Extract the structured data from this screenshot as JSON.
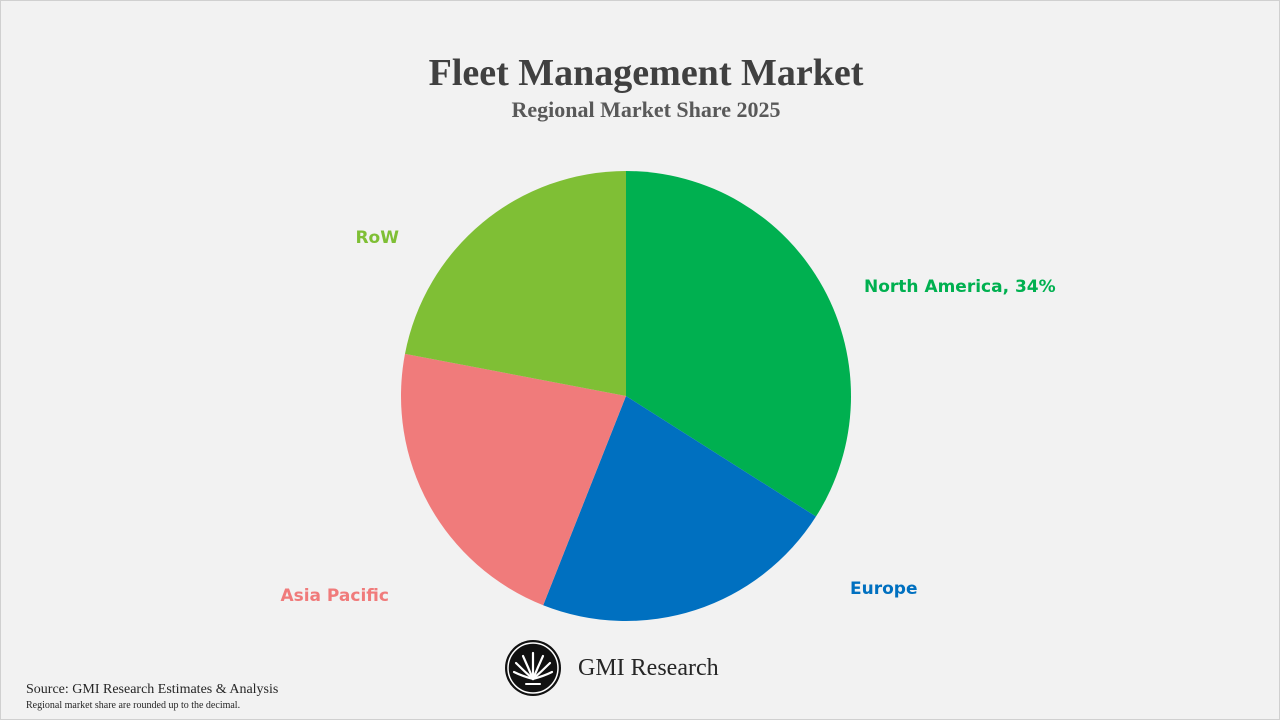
{
  "header": {
    "title": "Fleet Management Market",
    "subtitle": "Regional Market Share 2025"
  },
  "chart_data": {
    "type": "pie",
    "title": "Fleet Management Market",
    "subtitle": "Regional Market Share 2025",
    "start_angle_deg": 0,
    "direction": "clockwise",
    "slices": [
      {
        "name": "North America",
        "value": 34,
        "color": "#00b050",
        "label": "North America, 34%"
      },
      {
        "name": "Europe",
        "value": 22,
        "color": "#0070c0",
        "label": "Europe"
      },
      {
        "name": "Asia Pacific",
        "value": 22,
        "color": "#f07b7b",
        "label": "Asia Pacific"
      },
      {
        "name": "RoW",
        "value": 22,
        "color": "#7fbf35",
        "label": "RoW"
      }
    ]
  },
  "brand": {
    "name": "GMI Research",
    "logo_icon": "fan-palm-logo-icon"
  },
  "footer": {
    "source": "Source: GMI Research Estimates & Analysis",
    "note": "Regional market share are rounded up to the decimal."
  }
}
